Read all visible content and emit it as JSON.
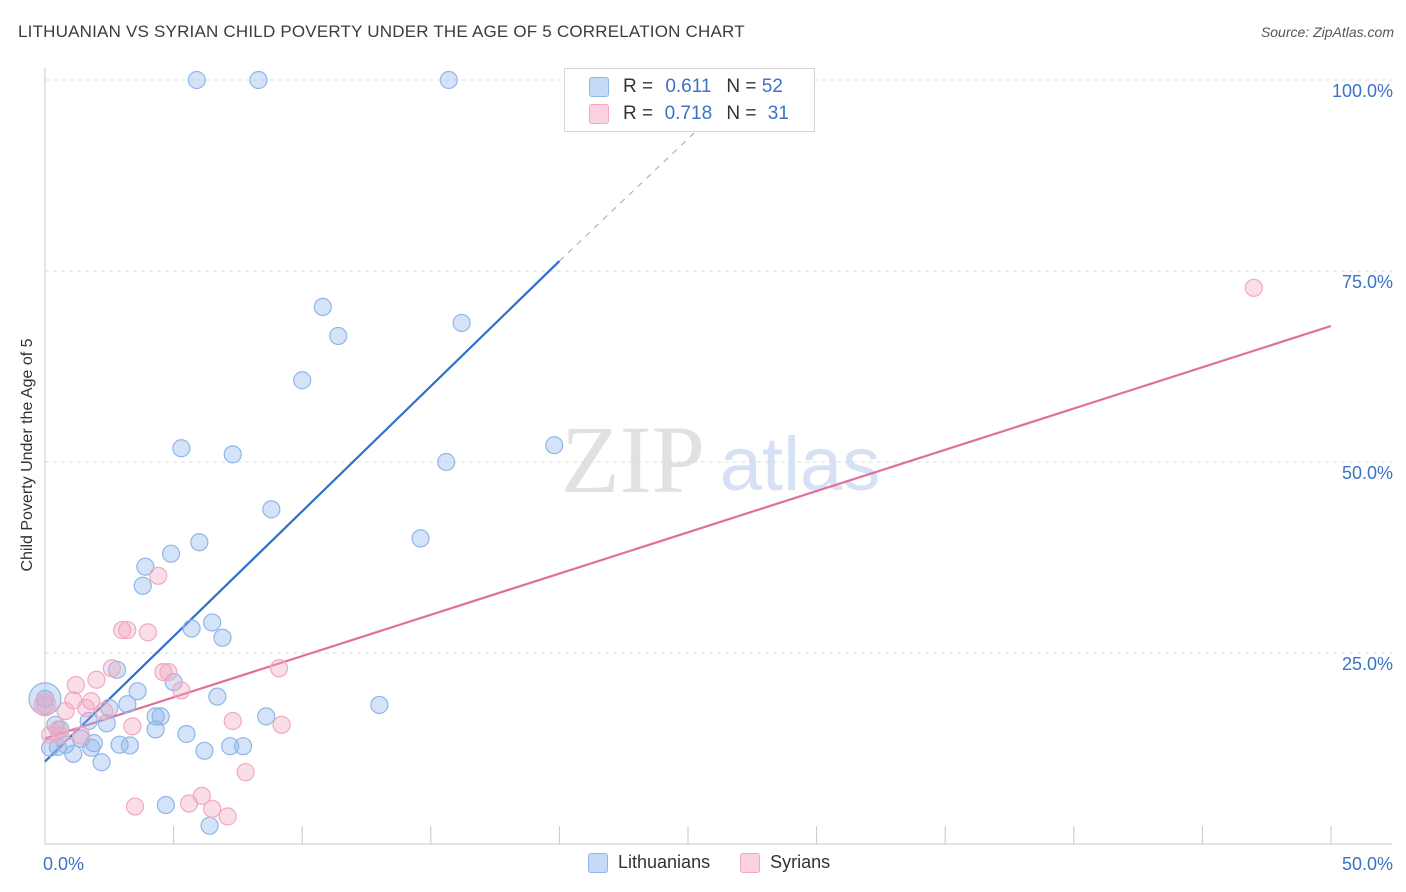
{
  "header": {
    "title": "LITHUANIAN VS SYRIAN CHILD POVERTY UNDER THE AGE OF 5 CORRELATION CHART",
    "source": "Source: ZipAtlas.com"
  },
  "watermark": {
    "zip": "ZIP",
    "atlas": "atlas"
  },
  "legend": {
    "r_label": "R =",
    "n_label": "N =",
    "rows": [
      {
        "r": "0.611",
        "n": "52",
        "color": "#8fb6ea"
      },
      {
        "r": "0.718",
        "n": "31",
        "color": "#f2a8c0"
      }
    ]
  },
  "bottom_legend": {
    "items": [
      {
        "label": "Lithuanians",
        "color": "#8fb6ea"
      },
      {
        "label": "Syrians",
        "color": "#f2a8c0"
      }
    ]
  },
  "chart_data": {
    "type": "scatter",
    "title": "LITHUANIAN VS SYRIAN CHILD POVERTY UNDER THE AGE OF 5 CORRELATION CHART",
    "xlabel": "",
    "ylabel": "Child Poverty Under the Age of 5",
    "xlim": [
      0,
      50
    ],
    "ylim": [
      0,
      100
    ],
    "x_ticks": [
      "0.0%",
      "50.0%"
    ],
    "y_ticks": [
      {
        "value": 25,
        "label": "25.0%"
      },
      {
        "value": 50,
        "label": "50.0%"
      },
      {
        "value": 75,
        "label": "75.0%"
      },
      {
        "value": 100,
        "label": "100.0%"
      }
    ],
    "grid": true,
    "series": [
      {
        "name": "Lithuanians",
        "color": "#8fb6ea",
        "line_color": "#2e6fcc",
        "trend": {
          "x0": 0.0,
          "y0": 10.8,
          "x1": 20.0,
          "y1": 76.3,
          "dash_to_x": 26.0,
          "dash_to_y": 95.5
        },
        "points": [
          [
            5.9,
            100
          ],
          [
            8.3,
            100
          ],
          [
            15.7,
            100
          ],
          [
            10.8,
            70.3
          ],
          [
            11.4,
            66.5
          ],
          [
            16.2,
            68.2
          ],
          [
            10.0,
            60.7
          ],
          [
            5.3,
            51.8
          ],
          [
            7.3,
            51.0
          ],
          [
            15.6,
            50.0
          ],
          [
            19.8,
            52.2
          ],
          [
            8.8,
            43.8
          ],
          [
            14.6,
            40.0
          ],
          [
            6.0,
            39.5
          ],
          [
            4.9,
            38.0
          ],
          [
            3.9,
            36.3
          ],
          [
            3.8,
            33.8
          ],
          [
            5.7,
            28.2
          ],
          [
            6.5,
            29.0
          ],
          [
            6.9,
            27.0
          ],
          [
            2.8,
            22.8
          ],
          [
            3.6,
            20.0
          ],
          [
            5.0,
            21.2
          ],
          [
            6.7,
            19.3
          ],
          [
            3.2,
            18.3
          ],
          [
            2.5,
            17.8
          ],
          [
            13.0,
            18.2
          ],
          [
            0.0,
            19.0
          ],
          [
            4.3,
            16.7
          ],
          [
            4.5,
            16.7
          ],
          [
            8.6,
            16.7
          ],
          [
            1.7,
            16.1
          ],
          [
            2.4,
            15.8
          ],
          [
            0.4,
            15.6
          ],
          [
            0.6,
            15.0
          ],
          [
            4.3,
            15.0
          ],
          [
            5.5,
            14.4
          ],
          [
            1.4,
            13.8
          ],
          [
            0.8,
            13.0
          ],
          [
            1.9,
            13.2
          ],
          [
            2.9,
            13.0
          ],
          [
            3.3,
            12.9
          ],
          [
            7.2,
            12.8
          ],
          [
            7.7,
            12.8
          ],
          [
            1.8,
            12.6
          ],
          [
            0.5,
            12.7
          ],
          [
            0.2,
            12.6
          ],
          [
            1.1,
            11.8
          ],
          [
            6.2,
            12.2
          ],
          [
            2.2,
            10.7
          ],
          [
            4.7,
            5.1
          ],
          [
            6.4,
            2.4
          ]
        ]
      },
      {
        "name": "Syrians",
        "color": "#f2a8c0",
        "line_color": "#e0709a",
        "trend": {
          "x0": 0.0,
          "y0": 13.8,
          "x1": 50.0,
          "y1": 67.8
        },
        "points": [
          [
            47.0,
            72.8
          ],
          [
            4.4,
            35.1
          ],
          [
            3.0,
            28.0
          ],
          [
            3.2,
            28.0
          ],
          [
            4.0,
            27.7
          ],
          [
            2.6,
            23.0
          ],
          [
            4.8,
            22.5
          ],
          [
            9.1,
            23.0
          ],
          [
            2.0,
            21.5
          ],
          [
            1.2,
            20.8
          ],
          [
            5.3,
            20.1
          ],
          [
            1.8,
            18.7
          ],
          [
            0.0,
            18.2
          ],
          [
            1.1,
            18.8
          ],
          [
            1.6,
            17.8
          ],
          [
            2.3,
            17.4
          ],
          [
            0.8,
            17.4
          ],
          [
            7.3,
            16.1
          ],
          [
            3.4,
            15.4
          ],
          [
            9.2,
            15.6
          ],
          [
            0.5,
            15.0
          ],
          [
            0.6,
            14.2
          ],
          [
            1.4,
            14.2
          ],
          [
            0.2,
            14.3
          ],
          [
            7.8,
            9.4
          ],
          [
            3.5,
            4.9
          ],
          [
            5.6,
            5.3
          ],
          [
            6.1,
            6.3
          ],
          [
            6.5,
            4.6
          ],
          [
            7.1,
            3.6
          ],
          [
            4.6,
            22.5
          ]
        ]
      }
    ]
  }
}
